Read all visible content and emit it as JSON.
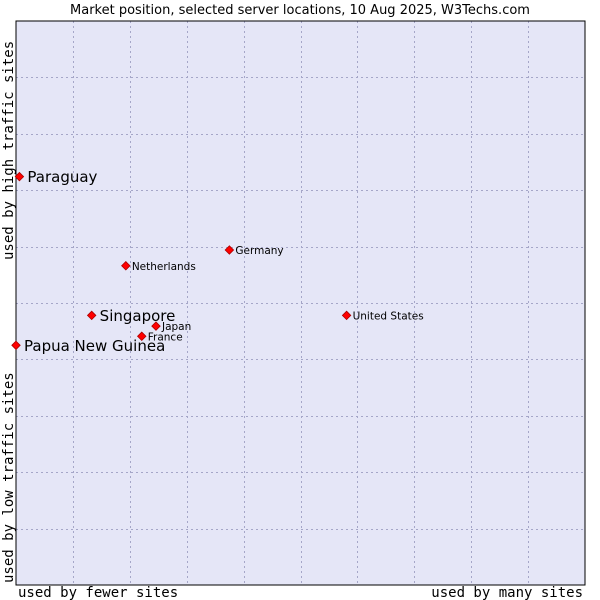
{
  "chart_data": {
    "type": "scatter",
    "title": "Market position, selected server locations, 10 Aug 2025, W3Techs.com",
    "xlabel_left": "used by fewer sites",
    "xlabel_right": "used by many sites",
    "ylabel_bottom": "used by low traffic sites",
    "ylabel_top": "used by high traffic sites",
    "xlim": [
      0,
      10
    ],
    "ylim": [
      0,
      10
    ],
    "grid": true,
    "colors": {
      "plot_bg": "#e5e6f7",
      "grid": "#a5a6c8",
      "border": "#000000",
      "marker": "#ff0000",
      "marker_edge": "#aa0000"
    },
    "points": [
      {
        "name": "Paraguay",
        "x": 0.06,
        "y": 7.24,
        "size": "large"
      },
      {
        "name": "Germany",
        "x": 3.75,
        "y": 5.94,
        "size": "small"
      },
      {
        "name": "Netherlands",
        "x": 1.93,
        "y": 5.66,
        "size": "small"
      },
      {
        "name": "Singapore",
        "x": 1.33,
        "y": 4.78,
        "size": "large"
      },
      {
        "name": "United States",
        "x": 5.81,
        "y": 4.78,
        "size": "small"
      },
      {
        "name": "Japan",
        "x": 2.46,
        "y": 4.59,
        "size": "small"
      },
      {
        "name": "France",
        "x": 2.21,
        "y": 4.41,
        "size": "small"
      },
      {
        "name": "Papua New Guinea",
        "x": 0.0,
        "y": 4.25,
        "size": "large"
      }
    ]
  }
}
